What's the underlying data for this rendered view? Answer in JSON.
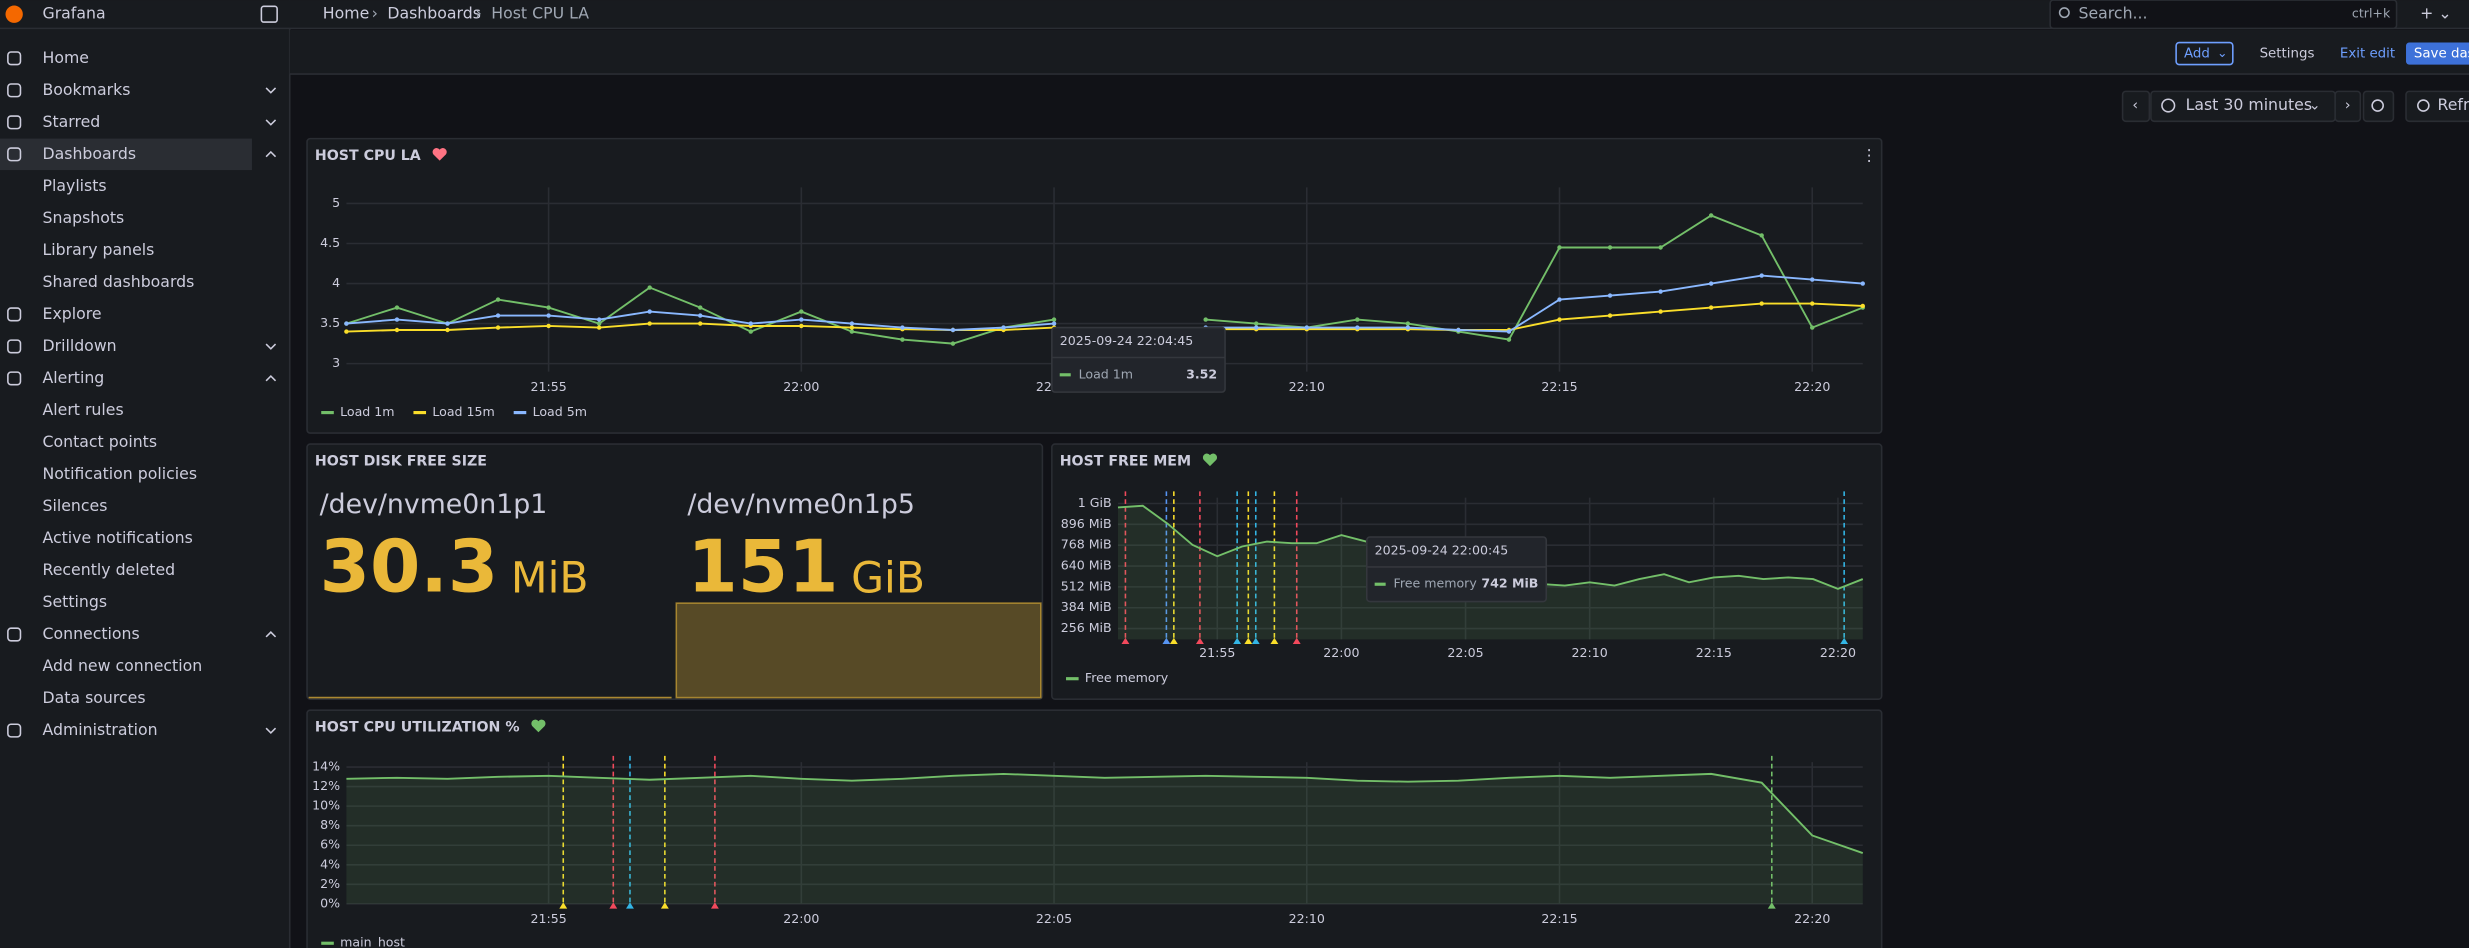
{
  "app": "Grafana",
  "breadcrumbs": [
    "Home",
    "Dashboards",
    "Host CPU LA"
  ],
  "search": {
    "placeholder": "Search...",
    "shortcut": "ctrl+k"
  },
  "toolbar": {
    "add": "Add",
    "settings": "Settings",
    "exit": "Exit edit",
    "save": "Save das"
  },
  "time_picker": {
    "range": "Last 30 minutes",
    "refresh": "Refr"
  },
  "nav": [
    {
      "label": "Home"
    },
    {
      "label": "Bookmarks",
      "expanded": false
    },
    {
      "label": "Starred",
      "expanded": false
    },
    {
      "label": "Dashboards",
      "expanded": true,
      "active": true
    },
    {
      "label": "Playlists",
      "child": true
    },
    {
      "label": "Snapshots",
      "child": true
    },
    {
      "label": "Library panels",
      "child": true
    },
    {
      "label": "Shared dashboards",
      "child": true
    },
    {
      "label": "Explore"
    },
    {
      "label": "Drilldown",
      "expanded": false
    },
    {
      "label": "Alerting",
      "expanded": true
    },
    {
      "label": "Alert rules",
      "child": true
    },
    {
      "label": "Contact points",
      "child": true
    },
    {
      "label": "Notification policies",
      "child": true
    },
    {
      "label": "Silences",
      "child": true
    },
    {
      "label": "Active notifications",
      "child": true
    },
    {
      "label": "Recently deleted",
      "child": true
    },
    {
      "label": "Settings",
      "child": true
    },
    {
      "label": "Connections",
      "expanded": true
    },
    {
      "label": "Add new connection",
      "child": true
    },
    {
      "label": "Data sources",
      "child": true
    },
    {
      "label": "Administration",
      "expanded": false
    }
  ],
  "panels": [
    {
      "type": "line",
      "title": "HOST CPU LA",
      "status_color": "#ff7383",
      "markers": true,
      "x": [
        "21:51",
        "21:52",
        "21:53",
        "21:54",
        "21:55",
        "21:56",
        "21:57",
        "21:58",
        "21:59",
        "22:00",
        "22:01",
        "22:02",
        "22:03",
        "22:04",
        "22:05",
        "22:06",
        "22:07",
        "22:08",
        "22:09",
        "22:10",
        "22:11",
        "22:12",
        "22:13",
        "22:14",
        "22:15",
        "22:16",
        "22:17",
        "22:18",
        "22:19",
        "22:20",
        "22:21"
      ],
      "xticks": [
        "21:55",
        "22:00",
        "22:05",
        "22:10",
        "22:15",
        "22:20"
      ],
      "ylim": [
        2.9,
        5.2
      ],
      "yticks": [
        3,
        3.5,
        4,
        4.5,
        5
      ],
      "grid": true,
      "series": [
        {
          "name": "Load 1m",
          "color": "#73bf69",
          "values": [
            3.5,
            3.7,
            3.5,
            3.8,
            3.7,
            3.5,
            3.95,
            3.7,
            3.4,
            3.65,
            3.4,
            3.3,
            3.25,
            3.45,
            3.55,
            null,
            null,
            3.55,
            3.5,
            3.45,
            3.55,
            3.5,
            3.4,
            3.3,
            4.45,
            4.45,
            4.45,
            4.85,
            4.6,
            3.45,
            3.7
          ]
        },
        {
          "name": "Load 15m",
          "color": "#fade2a",
          "values": [
            3.4,
            3.42,
            3.42,
            3.45,
            3.47,
            3.45,
            3.5,
            3.5,
            3.47,
            3.47,
            3.45,
            3.43,
            3.42,
            3.42,
            3.45,
            null,
            null,
            3.43,
            3.43,
            3.43,
            3.43,
            3.43,
            3.42,
            3.42,
            3.55,
            3.6,
            3.65,
            3.7,
            3.75,
            3.75,
            3.72
          ]
        },
        {
          "name": "Load 5m",
          "color": "#8ab8ff",
          "values": [
            3.5,
            3.55,
            3.5,
            3.6,
            3.6,
            3.55,
            3.65,
            3.6,
            3.5,
            3.55,
            3.5,
            3.45,
            3.42,
            3.45,
            3.5,
            null,
            null,
            3.45,
            3.45,
            3.45,
            3.45,
            3.45,
            3.42,
            3.4,
            3.8,
            3.85,
            3.9,
            4.0,
            4.1,
            4.05,
            4.0
          ]
        }
      ],
      "tooltip": {
        "time": "2025-09-24 22:04:45",
        "series": "Load 1m",
        "value": 3.52
      }
    },
    {
      "type": "stat",
      "title": "HOST DISK FREE SIZE",
      "color": "#eab839",
      "stats": [
        {
          "name": "/dev/nvme0n1p1",
          "value": 30.3,
          "unit": "MiB"
        },
        {
          "name": "/dev/nvme0n1p5",
          "value": 151,
          "unit": "GiB"
        }
      ]
    },
    {
      "type": "area",
      "title": "HOST FREE MEM",
      "status_color": "#73bf69",
      "x": [
        "21:51",
        "21:52",
        "21:53",
        "21:54",
        "21:55",
        "21:56",
        "21:57",
        "21:58",
        "21:59",
        "22:00",
        "22:01",
        "22:02",
        "22:03",
        "22:04",
        "22:05",
        "22:06",
        "22:07",
        "22:08",
        "22:09",
        "22:10",
        "22:11",
        "22:12",
        "22:13",
        "22:14",
        "22:15",
        "22:16",
        "22:17",
        "22:18",
        "22:19",
        "22:20",
        "22:21"
      ],
      "xticks": [
        "21:55",
        "22:00",
        "22:05",
        "22:10",
        "22:15",
        "22:20"
      ],
      "ylim": [
        190,
        1060
      ],
      "yticks": [
        {
          "value": 1024,
          "label": "1 GiB"
        },
        {
          "value": 896,
          "label": "896 MiB"
        },
        {
          "value": 768,
          "label": "768 MiB"
        },
        {
          "value": 640,
          "label": "640 MiB"
        },
        {
          "value": 512,
          "label": "512 MiB"
        },
        {
          "value": 384,
          "label": "384 MiB"
        },
        {
          "value": 256,
          "label": "256 MiB"
        }
      ],
      "grid": true,
      "series": [
        {
          "name": "Free memory",
          "color": "#73bf69",
          "values": [
            1000,
            1010,
            900,
            770,
            700,
            760,
            790,
            780,
            780,
            830,
            790,
            760,
            600,
            720,
            480,
            580,
            460,
            530,
            520,
            540,
            520,
            560,
            590,
            540,
            570,
            580,
            560,
            570,
            560,
            500,
            560
          ]
        }
      ],
      "tooltip": {
        "time": "2025-09-24 22:00:45",
        "series": "Free memory",
        "value": "742 MiB"
      }
    },
    {
      "type": "area",
      "title": "HOST CPU UTILIZATION %",
      "status_color": "#73bf69",
      "x": [
        "21:51",
        "21:52",
        "21:53",
        "21:54",
        "21:55",
        "21:56",
        "21:57",
        "21:58",
        "21:59",
        "22:00",
        "22:01",
        "22:02",
        "22:03",
        "22:04",
        "22:05",
        "22:06",
        "22:07",
        "22:08",
        "22:09",
        "22:10",
        "22:11",
        "22:12",
        "22:13",
        "22:14",
        "22:15",
        "22:16",
        "22:17",
        "22:18",
        "22:19",
        "22:20",
        "22:21"
      ],
      "xticks": [
        "21:55",
        "22:00",
        "22:05",
        "22:10",
        "22:15",
        "22:20"
      ],
      "ylim": [
        0,
        14.5
      ],
      "yticks": [
        {
          "value": 0,
          "label": "0%"
        },
        {
          "value": 2,
          "label": "2%"
        },
        {
          "value": 4,
          "label": "4%"
        },
        {
          "value": 6,
          "label": "6%"
        },
        {
          "value": 8,
          "label": "8%"
        },
        {
          "value": 10,
          "label": "10%"
        },
        {
          "value": 12,
          "label": "12%"
        },
        {
          "value": 14,
          "label": "14%"
        }
      ],
      "grid": true,
      "series": [
        {
          "name": "main_host",
          "color": "#73bf69",
          "values": [
            12.8,
            12.9,
            12.8,
            13.0,
            13.1,
            12.9,
            12.7,
            12.9,
            13.1,
            12.8,
            12.6,
            12.8,
            13.1,
            13.3,
            13.1,
            12.9,
            13.0,
            13.1,
            13.0,
            12.9,
            12.6,
            12.5,
            12.6,
            12.9,
            13.1,
            12.9,
            13.1,
            13.3,
            12.4,
            7.0,
            5.2
          ]
        }
      ]
    }
  ]
}
